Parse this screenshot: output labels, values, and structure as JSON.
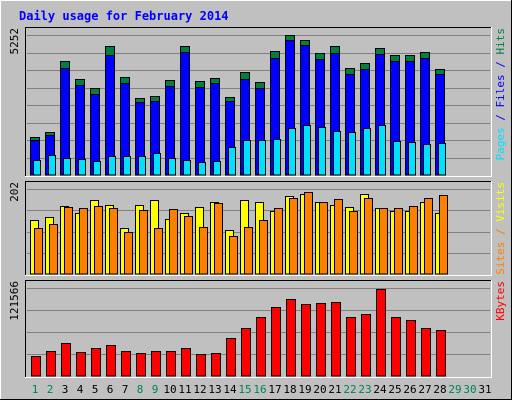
{
  "chart_data": {
    "type": "bar",
    "title": "Daily usage for February 2014",
    "x": [
      "1",
      "2",
      "3",
      "4",
      "5",
      "6",
      "7",
      "8",
      "9",
      "10",
      "11",
      "12",
      "13",
      "14",
      "15",
      "16",
      "17",
      "18",
      "19",
      "20",
      "21",
      "22",
      "23",
      "24",
      "25",
      "26",
      "27",
      "28",
      "29",
      "30",
      "31"
    ],
    "weekend_days": [
      "1",
      "2",
      "8",
      "9",
      "15",
      "16",
      "22",
      "23",
      "29",
      "30"
    ],
    "grid": true,
    "panels": [
      {
        "name": "hits-files-pages",
        "ymax_label": "5252",
        "ylim": [
          0,
          5252
        ],
        "side_label_parts": [
          {
            "text": "Pages",
            "color": "#00E0FF"
          },
          {
            "text": " / ",
            "color": "#0000FF"
          },
          {
            "text": "Files",
            "color": "#0000FF"
          },
          {
            "text": " / ",
            "color": "#0000FF"
          },
          {
            "text": "Hits",
            "color": "#008040"
          }
        ],
        "series": [
          {
            "name": "Hits",
            "color": "#008040",
            "values": [
              1410,
              1600,
              4260,
              3600,
              3250,
              4830,
              3670,
              2900,
              2960,
              3560,
              4850,
              3510,
              3640,
              2920,
              3860,
              3480,
              4660,
              5240,
              5060,
              4560,
              4850,
              4000,
              4220,
              4780,
              4520,
              4520,
              4600,
              3960
            ]
          },
          {
            "name": "Files",
            "color": "#0000FF",
            "values": [
              1330,
              1490,
              4000,
              3380,
              3030,
              4510,
              3440,
              2720,
              2780,
              3340,
              4600,
              3320,
              3440,
              2760,
              3600,
              3250,
              4400,
              5080,
              4860,
              4370,
              4580,
              3780,
              3990,
              4540,
              4280,
              4270,
              4400,
              3780
            ]
          },
          {
            "name": "Pages",
            "color": "#00E0FF",
            "values": [
              560,
              740,
              650,
              600,
              540,
              700,
              720,
              720,
              840,
              650,
              580,
              500,
              520,
              1040,
              1320,
              1300,
              1340,
              1780,
              1880,
              1800,
              1660,
              1620,
              1780,
              1860,
              1260,
              1240,
              1170,
              1210
            ]
          }
        ]
      },
      {
        "name": "visits-sites",
        "ymax_label": "202",
        "ylim": [
          0,
          202
        ],
        "side_label_parts": [
          {
            "text": "Sites",
            "color": "#FF8000"
          },
          {
            "text": " / ",
            "color": "#FF8000"
          },
          {
            "text": "Visits",
            "color": "#FFFF00"
          }
        ],
        "series": [
          {
            "name": "Visits",
            "color": "#FFFF00",
            "values": [
              128,
              135,
              162,
              145,
              175,
              165,
              110,
              165,
              175,
              130,
              145,
              160,
              170,
              105,
              175,
              170,
              150,
              185,
              190,
              170,
              165,
              160,
              190,
              158,
              150,
              150,
              170,
              145
            ]
          },
          {
            "name": "Sites",
            "color": "#FF8000",
            "values": [
              110,
              120,
              160,
              158,
              162,
              158,
              100,
              152,
              110,
              155,
              138,
              112,
              168,
              90,
              112,
              128,
              158,
              180,
              195,
              172,
              178,
              150,
              180,
              158,
              158,
              162,
              180,
              188
            ]
          }
        ]
      },
      {
        "name": "kbytes",
        "ymax_label": "121566",
        "ylim": [
          0,
          121566
        ],
        "side_label_parts": [
          {
            "text": "KBytes",
            "color": "#FF0000"
          }
        ],
        "series": [
          {
            "name": "KBytes",
            "color": "#FF0000",
            "values": [
              27000,
              34000,
              45000,
              33000,
              38000,
              43000,
              35000,
              32000,
              34000,
              34000,
              39000,
              31000,
              32000,
              53000,
              66000,
              81000,
              95000,
              106000,
              99000,
              101000,
              102000,
              81000,
              86000,
              120000,
              82000,
              78000,
              66000,
              63000
            ]
          }
        ]
      }
    ]
  },
  "colors": {
    "background": "#C0C0C0",
    "panel": "#C0C0C0",
    "title": "#0000FF",
    "grid": "#808080",
    "weekday_label": "#000000",
    "weekend_label": "#00805C"
  }
}
